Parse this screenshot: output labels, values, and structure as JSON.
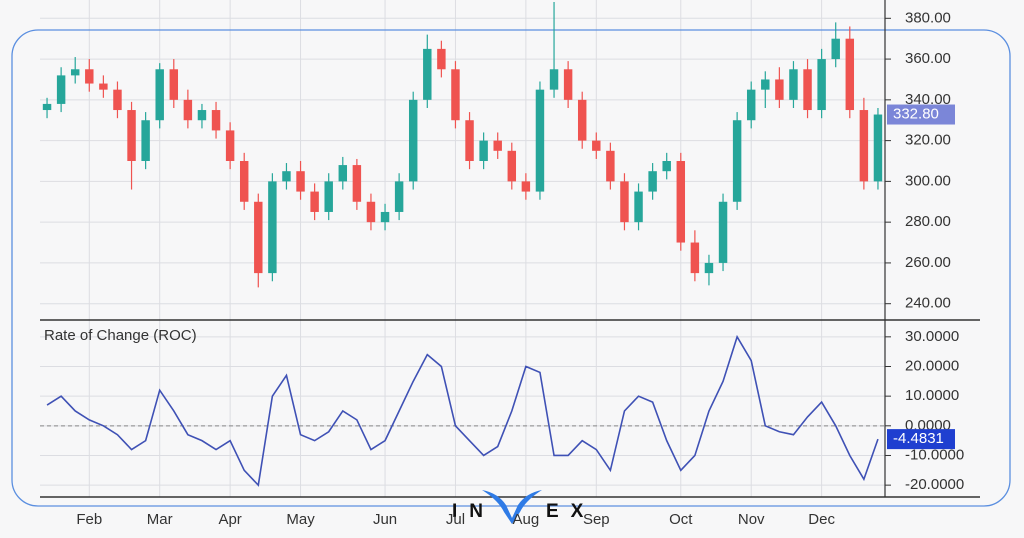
{
  "chart_data": [
    {
      "type": "candlestick",
      "open": [
        335,
        338,
        352,
        355,
        348,
        345,
        335,
        310,
        330,
        355,
        340,
        330,
        335,
        325,
        310,
        290,
        255,
        300,
        305,
        295,
        285,
        300,
        308,
        290,
        280,
        285,
        300,
        340,
        365,
        355,
        330,
        310,
        320,
        315,
        300,
        295,
        345,
        355,
        340,
        320,
        315,
        300,
        280,
        295,
        305,
        310,
        270,
        255,
        260,
        290,
        330,
        345,
        350,
        340,
        355,
        335,
        360,
        370,
        335,
        300
      ],
      "high": [
        341,
        356,
        361,
        360,
        352,
        349,
        339,
        334,
        358,
        360,
        345,
        338,
        339,
        329,
        314,
        294,
        304,
        309,
        310,
        299,
        304,
        312,
        311,
        294,
        289,
        304,
        344,
        372,
        369,
        359,
        334,
        324,
        324,
        319,
        304,
        349,
        388,
        359,
        344,
        324,
        319,
        304,
        299,
        309,
        314,
        314,
        276,
        264,
        294,
        334,
        349,
        354,
        356,
        359,
        360,
        365,
        378,
        376,
        341,
        336
      ],
      "low": [
        331,
        334,
        348,
        344,
        341,
        331,
        296,
        306,
        326,
        336,
        326,
        326,
        321,
        306,
        286,
        248,
        251,
        296,
        291,
        281,
        281,
        296,
        286,
        276,
        276,
        281,
        296,
        336,
        351,
        326,
        306,
        306,
        311,
        296,
        291,
        291,
        341,
        336,
        316,
        311,
        296,
        276,
        276,
        291,
        301,
        266,
        251,
        249,
        256,
        286,
        326,
        336,
        336,
        336,
        331,
        331,
        356,
        331,
        296,
        296
      ],
      "close": [
        338,
        352,
        355,
        348,
        345,
        335,
        310,
        330,
        355,
        340,
        330,
        335,
        325,
        310,
        290,
        255,
        300,
        305,
        295,
        285,
        300,
        308,
        290,
        280,
        285,
        300,
        340,
        365,
        355,
        330,
        310,
        320,
        315,
        300,
        295,
        345,
        355,
        340,
        320,
        315,
        300,
        280,
        295,
        305,
        310,
        270,
        255,
        260,
        290,
        330,
        345,
        350,
        340,
        355,
        335,
        360,
        370,
        335,
        300,
        332.8
      ],
      "up_color": "#26a69a",
      "down_color": "#ef5350",
      "ylim": [
        232,
        388
      ],
      "yticks": [
        {
          "value": 240,
          "label": "240.00"
        },
        {
          "value": 260,
          "label": "260.00"
        },
        {
          "value": 280,
          "label": "280.00"
        },
        {
          "value": 300,
          "label": "300.00"
        },
        {
          "value": 320,
          "label": "320.00"
        },
        {
          "value": 340,
          "label": "340.00"
        },
        {
          "value": 360,
          "label": "360.00"
        },
        {
          "value": 380,
          "label": "380.00"
        }
      ],
      "last_value": {
        "value": 332.8,
        "label": "332.80"
      },
      "last_color": "#7b86d8",
      "grid": true
    },
    {
      "type": "line",
      "title": "Rate of Change (ROC)",
      "categories": [
        null,
        null,
        null,
        "Feb",
        null,
        null,
        null,
        null,
        "Mar",
        null,
        null,
        null,
        null,
        "Apr",
        null,
        null,
        null,
        null,
        "May",
        null,
        null,
        null,
        null,
        null,
        "Jun",
        null,
        null,
        null,
        null,
        "Jul",
        null,
        null,
        null,
        null,
        "Aug",
        null,
        null,
        null,
        null,
        "Sep",
        null,
        null,
        null,
        null,
        null,
        "Oct",
        null,
        null,
        null,
        null,
        "Nov",
        null,
        null,
        null,
        null,
        "Dec",
        null,
        null,
        null,
        null
      ],
      "series": [
        {
          "name": "ROC",
          "color": "#3f51b5",
          "values": [
            7,
            10,
            5,
            2,
            0,
            -3,
            -8,
            -5,
            12,
            5,
            -3,
            -5,
            -8,
            -5,
            -15,
            -20,
            10,
            17,
            -3,
            -5,
            -2,
            5,
            2,
            -8,
            -5,
            5,
            15,
            24,
            20,
            0,
            -5,
            -10,
            -7,
            5,
            20,
            18,
            -10,
            -10,
            -5,
            -8,
            -15,
            5,
            10,
            8,
            -5,
            -15,
            -10,
            5,
            15,
            30,
            22,
            0,
            -2,
            -3,
            3,
            8,
            0,
            -10,
            -18,
            -4.4831
          ]
        }
      ],
      "ylim": [
        -24,
        35
      ],
      "yticks": [
        {
          "value": -20,
          "label": "-20.0000"
        },
        {
          "value": -10,
          "label": "-10.0000"
        },
        {
          "value": 0,
          "label": "0.0000"
        },
        {
          "value": 10,
          "label": "10.0000"
        },
        {
          "value": 20,
          "label": "20.0000"
        },
        {
          "value": 30,
          "label": "30.0000"
        }
      ],
      "last_value": {
        "value": -4.4831,
        "label": "-4.4831"
      },
      "last_color": "#1f3fd0",
      "grid": true
    }
  ],
  "watermark": {
    "left": "IN",
    "right": "EX"
  }
}
